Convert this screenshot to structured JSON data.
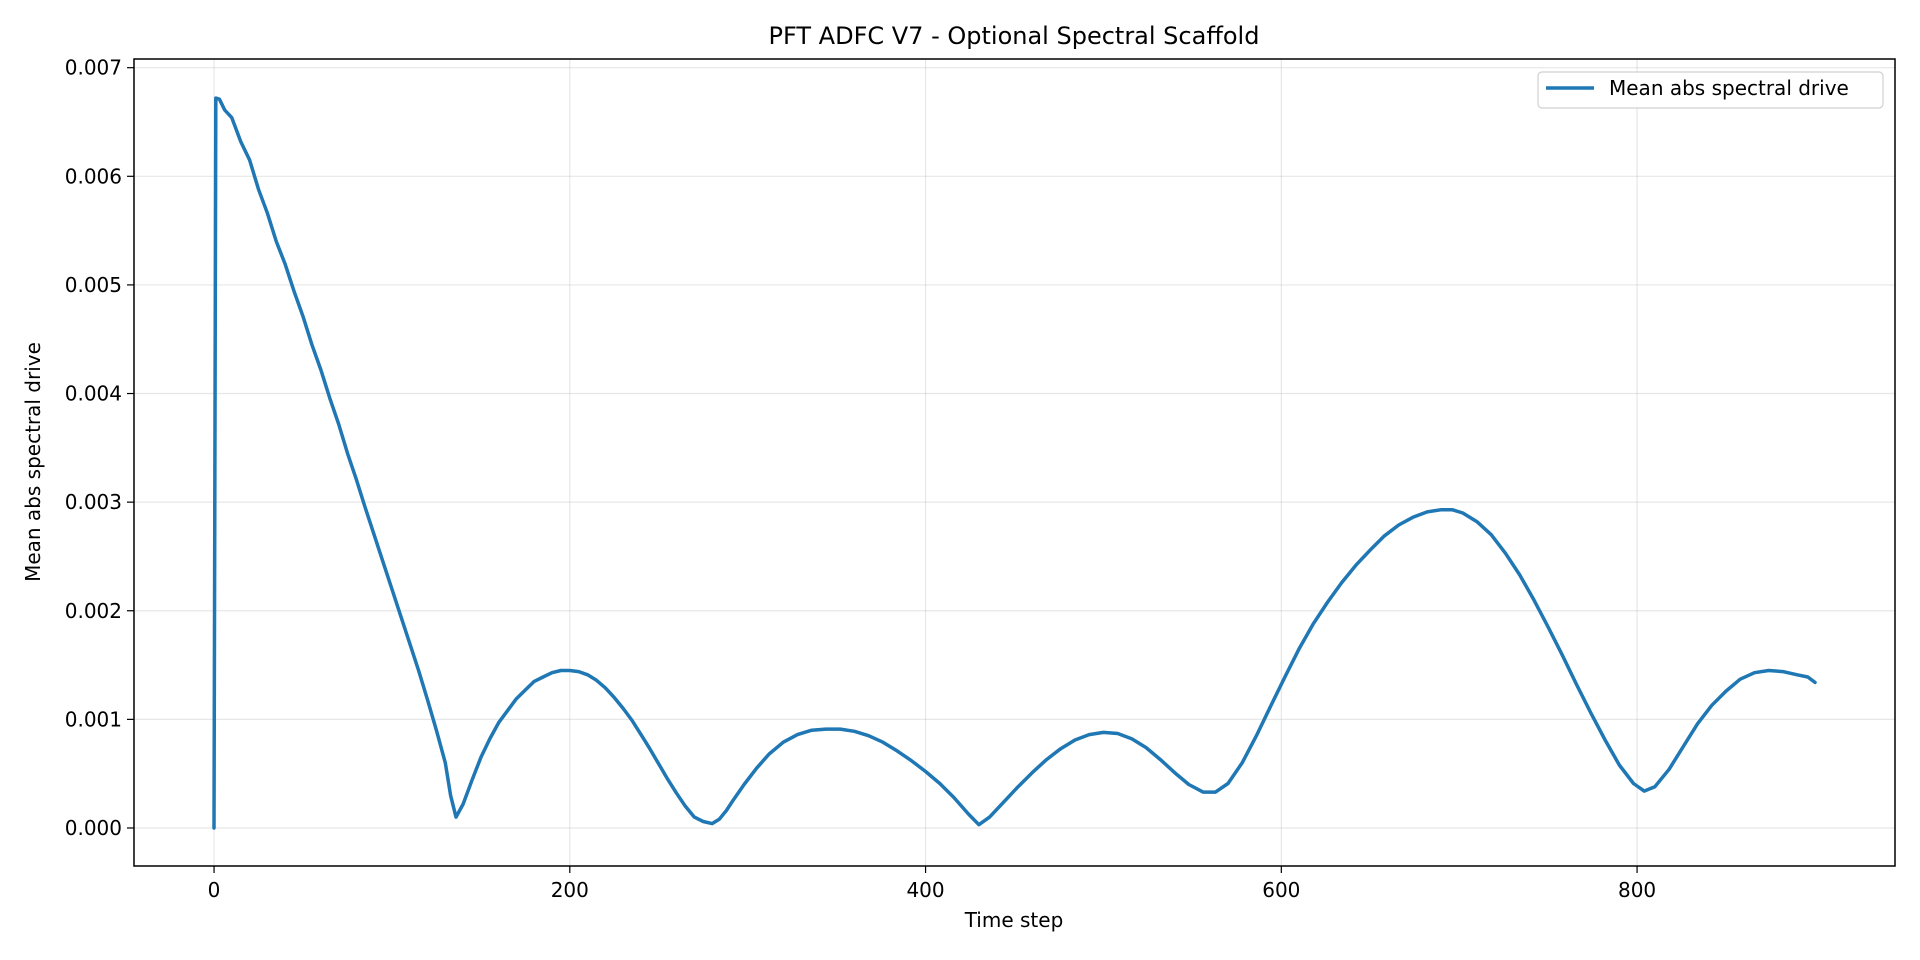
{
  "chart_data": {
    "type": "line",
    "title": "PFT ADFC V7 - Optional Spectral Scaffold",
    "xlabel": "Time step",
    "ylabel": "Mean abs spectral drive",
    "xlim": [
      -45,
      945
    ],
    "ylim": [
      -0.00035,
      0.00708
    ],
    "xticks": [
      0,
      200,
      400,
      600,
      800
    ],
    "xtick_labels": [
      "0",
      "200",
      "400",
      "600",
      "800"
    ],
    "yticks": [
      0,
      0.001,
      0.002,
      0.003,
      0.004,
      0.005,
      0.006,
      0.007
    ],
    "ytick_labels": [
      "0.000",
      "0.001",
      "0.002",
      "0.003",
      "0.004",
      "0.005",
      "0.006",
      "0.007"
    ],
    "grid": true,
    "legend": {
      "placement": "top-right"
    },
    "colors": {
      "series": "#1f77b4"
    },
    "series": [
      {
        "name": "Mean abs spectral drive",
        "x": [
          0,
          1,
          3,
          6,
          10,
          15,
          20,
          25,
          30,
          35,
          40,
          45,
          50,
          55,
          60,
          65,
          70,
          75,
          80,
          85,
          90,
          95,
          100,
          105,
          110,
          115,
          120,
          125,
          130,
          133,
          136,
          140,
          145,
          150,
          155,
          160,
          165,
          170,
          175,
          180,
          185,
          190,
          195,
          200,
          205,
          210,
          215,
          220,
          225,
          230,
          235,
          240,
          245,
          250,
          255,
          260,
          265,
          270,
          275,
          280,
          284,
          288,
          292,
          298,
          305,
          312,
          320,
          328,
          336,
          344,
          352,
          360,
          368,
          376,
          384,
          392,
          400,
          408,
          416,
          424,
          430,
          436,
          444,
          452,
          460,
          468,
          476,
          484,
          492,
          500,
          508,
          516,
          524,
          532,
          540,
          548,
          556,
          563,
          570,
          578,
          586,
          594,
          602,
          610,
          618,
          626,
          634,
          642,
          650,
          658,
          666,
          674,
          682,
          690,
          696,
          702,
          710,
          718,
          726,
          734,
          742,
          750,
          758,
          766,
          774,
          782,
          790,
          798,
          804,
          810,
          818,
          826,
          834,
          842,
          850,
          858,
          866,
          874,
          882,
          890,
          896,
          900
        ],
        "y": [
          0.0,
          0.00672,
          0.00671,
          0.00661,
          0.00654,
          0.00632,
          0.00615,
          0.00588,
          0.00566,
          0.0054,
          0.00519,
          0.00494,
          0.00471,
          0.00445,
          0.00422,
          0.00396,
          0.00372,
          0.00345,
          0.00321,
          0.00295,
          0.0027,
          0.00245,
          0.0022,
          0.00195,
          0.0017,
          0.00145,
          0.00118,
          0.0009,
          0.0006,
          0.0003,
          0.0001,
          0.00022,
          0.00044,
          0.00065,
          0.00082,
          0.00097,
          0.00108,
          0.00119,
          0.00127,
          0.00135,
          0.00139,
          0.00143,
          0.00145,
          0.00145,
          0.00144,
          0.00141,
          0.00136,
          0.00129,
          0.0012,
          0.0011,
          0.00099,
          0.00086,
          0.00073,
          0.00059,
          0.00045,
          0.00032,
          0.0002,
          0.0001,
          6e-05,
          4e-05,
          8e-05,
          0.00016,
          0.00026,
          0.0004,
          0.00055,
          0.00068,
          0.00079,
          0.00086,
          0.0009,
          0.00091,
          0.00091,
          0.00089,
          0.00085,
          0.00079,
          0.00071,
          0.00062,
          0.00052,
          0.00041,
          0.00028,
          0.00013,
          3e-05,
          0.0001,
          0.00024,
          0.00038,
          0.00051,
          0.00063,
          0.00073,
          0.00081,
          0.00086,
          0.00088,
          0.00087,
          0.00082,
          0.00074,
          0.00063,
          0.00051,
          0.0004,
          0.00033,
          0.00033,
          0.00041,
          0.0006,
          0.00085,
          0.00112,
          0.00139,
          0.00165,
          0.00188,
          0.00208,
          0.00226,
          0.00242,
          0.00256,
          0.00269,
          0.00279,
          0.00286,
          0.00291,
          0.00293,
          0.00293,
          0.0029,
          0.00282,
          0.0027,
          0.00253,
          0.00233,
          0.0021,
          0.00185,
          0.00159,
          0.00132,
          0.00106,
          0.00081,
          0.00058,
          0.00041,
          0.00034,
          0.00038,
          0.00054,
          0.00075,
          0.00096,
          0.00113,
          0.00126,
          0.00137,
          0.00143,
          0.00145,
          0.00144,
          0.00141,
          0.00139,
          0.00134
        ]
      }
    ]
  }
}
